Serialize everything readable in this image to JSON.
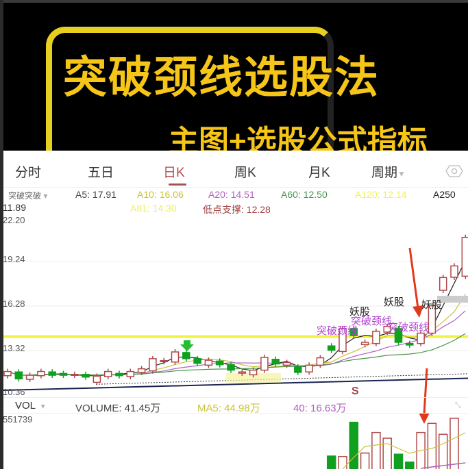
{
  "banner": {
    "title": "突破颈线选股法",
    "subtitle": "主图+选股公式指标"
  },
  "tabs": [
    {
      "label": "分时",
      "active": false
    },
    {
      "label": "五日",
      "active": false
    },
    {
      "label": "日K",
      "active": true
    },
    {
      "label": "周K",
      "active": false
    },
    {
      "label": "月K",
      "active": false
    },
    {
      "label": "周期",
      "active": false
    }
  ],
  "settings_icon": "eye-hexagon-icon",
  "indicator": {
    "name": "突破突破",
    "caret": "▾"
  },
  "ma_values": [
    {
      "label": "A5: 17.91",
      "color": "#444444"
    },
    {
      "label": "A10: 16.06",
      "color": "#c9c236"
    },
    {
      "label": "A20: 14.51",
      "color": "#b060c0"
    },
    {
      "label": "A60: 12.50",
      "color": "#4a944a"
    },
    {
      "label": "A120: 12.14",
      "color": "#f2f05a"
    },
    {
      "label": "A250",
      "color": "#222222"
    },
    {
      "label": "A81: 14.30",
      "color": "#eeee60"
    },
    {
      "label": "低点支撑: 12.28",
      "color": "#a04040"
    }
  ],
  "current_price": "11.89",
  "vol_panel": {
    "name": "VOL",
    "caret": "▾",
    "volume": "VOLUME: 41.45万",
    "ma5": "MA5: 44.98万",
    "ma40": "40: 16.63万",
    "max": "551739",
    "colors": {
      "volume": "#444444",
      "ma5": "#c9c236",
      "ma40": "#b060c0"
    }
  },
  "annotations": {
    "yaogu": "妖股",
    "breakout": "突破颈线",
    "s": "S"
  },
  "colors": {
    "up": "#b04848",
    "down": "#10a020",
    "neckline": "#f0f020",
    "arrow": "#e03a1a",
    "breakout": "#b040d0"
  },
  "chart_data": {
    "type": "candlestick",
    "y_ticks": [
      "22.20",
      "19.24",
      "16.28",
      "13.32",
      "10.36"
    ],
    "ylim": [
      10.36,
      22.2
    ],
    "neckline": 14.02,
    "candles": [
      [
        11.42,
        11.7
      ],
      [
        11.67,
        11.21
      ],
      [
        11.18,
        11.45
      ],
      [
        11.42,
        11.7
      ],
      [
        11.67,
        11.45
      ],
      [
        11.57,
        11.45
      ],
      [
        11.45,
        11.51
      ],
      [
        11.51,
        11.33
      ],
      [
        10.98,
        11.39
      ],
      [
        11.36,
        11.7
      ],
      [
        11.57,
        11.42
      ],
      [
        11.36,
        11.7
      ],
      [
        11.64,
        11.88
      ],
      [
        11.74,
        12.55
      ],
      [
        12.36,
        12.42
      ],
      [
        12.33,
        13.0
      ],
      [
        12.96,
        12.55
      ],
      [
        12.55,
        12.24
      ],
      [
        12.12,
        12.45
      ],
      [
        12.39,
        12.15
      ],
      [
        12.15,
        11.79
      ],
      [
        11.59,
        11.67
      ],
      [
        11.48,
        11.79
      ],
      [
        11.79,
        12.64
      ],
      [
        12.51,
        12.2
      ],
      [
        12.12,
        12.3
      ],
      [
        12.0,
        11.64
      ],
      [
        11.67,
        12.12
      ],
      [
        12.12,
        12.61
      ],
      [
        13.4,
        13.11
      ],
      [
        13.03,
        14.55
      ],
      [
        14.55,
        14.09
      ],
      [
        13.49,
        13.64
      ],
      [
        13.56,
        14.37
      ],
      [
        14.32,
        14.7
      ],
      [
        14.55,
        13.64
      ],
      [
        13.56,
        13.46
      ],
      [
        13.56,
        14.25
      ],
      [
        14.25,
        16.07
      ],
      [
        17.1,
        17.95
      ],
      [
        17.97,
        18.72
      ],
      [
        18.04,
        20.62
      ]
    ],
    "volumes": [
      null,
      null,
      null,
      null,
      null,
      null,
      null,
      null,
      null,
      null,
      null,
      null,
      null,
      null,
      null,
      null,
      null,
      null,
      null,
      null,
      null,
      null,
      null,
      null,
      null,
      null,
      null,
      null,
      null,
      143000,
      138000,
      516000,
      176000,
      403000,
      340000,
      164000,
      76000,
      403000,
      504000,
      383000,
      560000,
      null
    ],
    "vol_max": 551739
  }
}
